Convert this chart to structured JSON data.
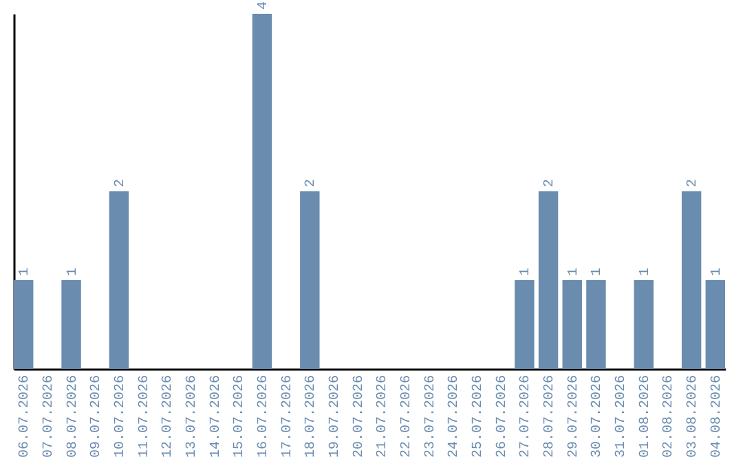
{
  "chart_data": {
    "type": "bar",
    "categories": [
      "06.07.2026",
      "07.07.2026",
      "08.07.2026",
      "09.07.2026",
      "10.07.2026",
      "11.07.2026",
      "12.07.2026",
      "13.07.2026",
      "14.07.2026",
      "15.07.2026",
      "16.07.2026",
      "17.07.2026",
      "18.07.2026",
      "19.07.2026",
      "20.07.2026",
      "21.07.2026",
      "22.07.2026",
      "23.07.2026",
      "24.07.2026",
      "25.07.2026",
      "26.07.2026",
      "27.07.2026",
      "28.07.2026",
      "29.07.2026",
      "30.07.2026",
      "31.07.2026",
      "01.08.2026",
      "02.08.2026",
      "03.08.2026",
      "04.08.2026"
    ],
    "values": [
      1,
      0,
      1,
      0,
      2,
      0,
      0,
      0,
      0,
      0,
      4,
      0,
      2,
      0,
      0,
      0,
      0,
      0,
      0,
      0,
      0,
      1,
      2,
      1,
      1,
      0,
      1,
      0,
      2,
      1
    ],
    "value_labels": [
      "1",
      null,
      "1",
      null,
      "2",
      null,
      null,
      null,
      null,
      null,
      "4",
      null,
      "2",
      null,
      null,
      null,
      null,
      null,
      null,
      null,
      null,
      "1",
      "2",
      "1",
      "1",
      null,
      "1",
      null,
      "2",
      "1"
    ],
    "color": "#6a8caf",
    "tick_labels": "x"
  }
}
